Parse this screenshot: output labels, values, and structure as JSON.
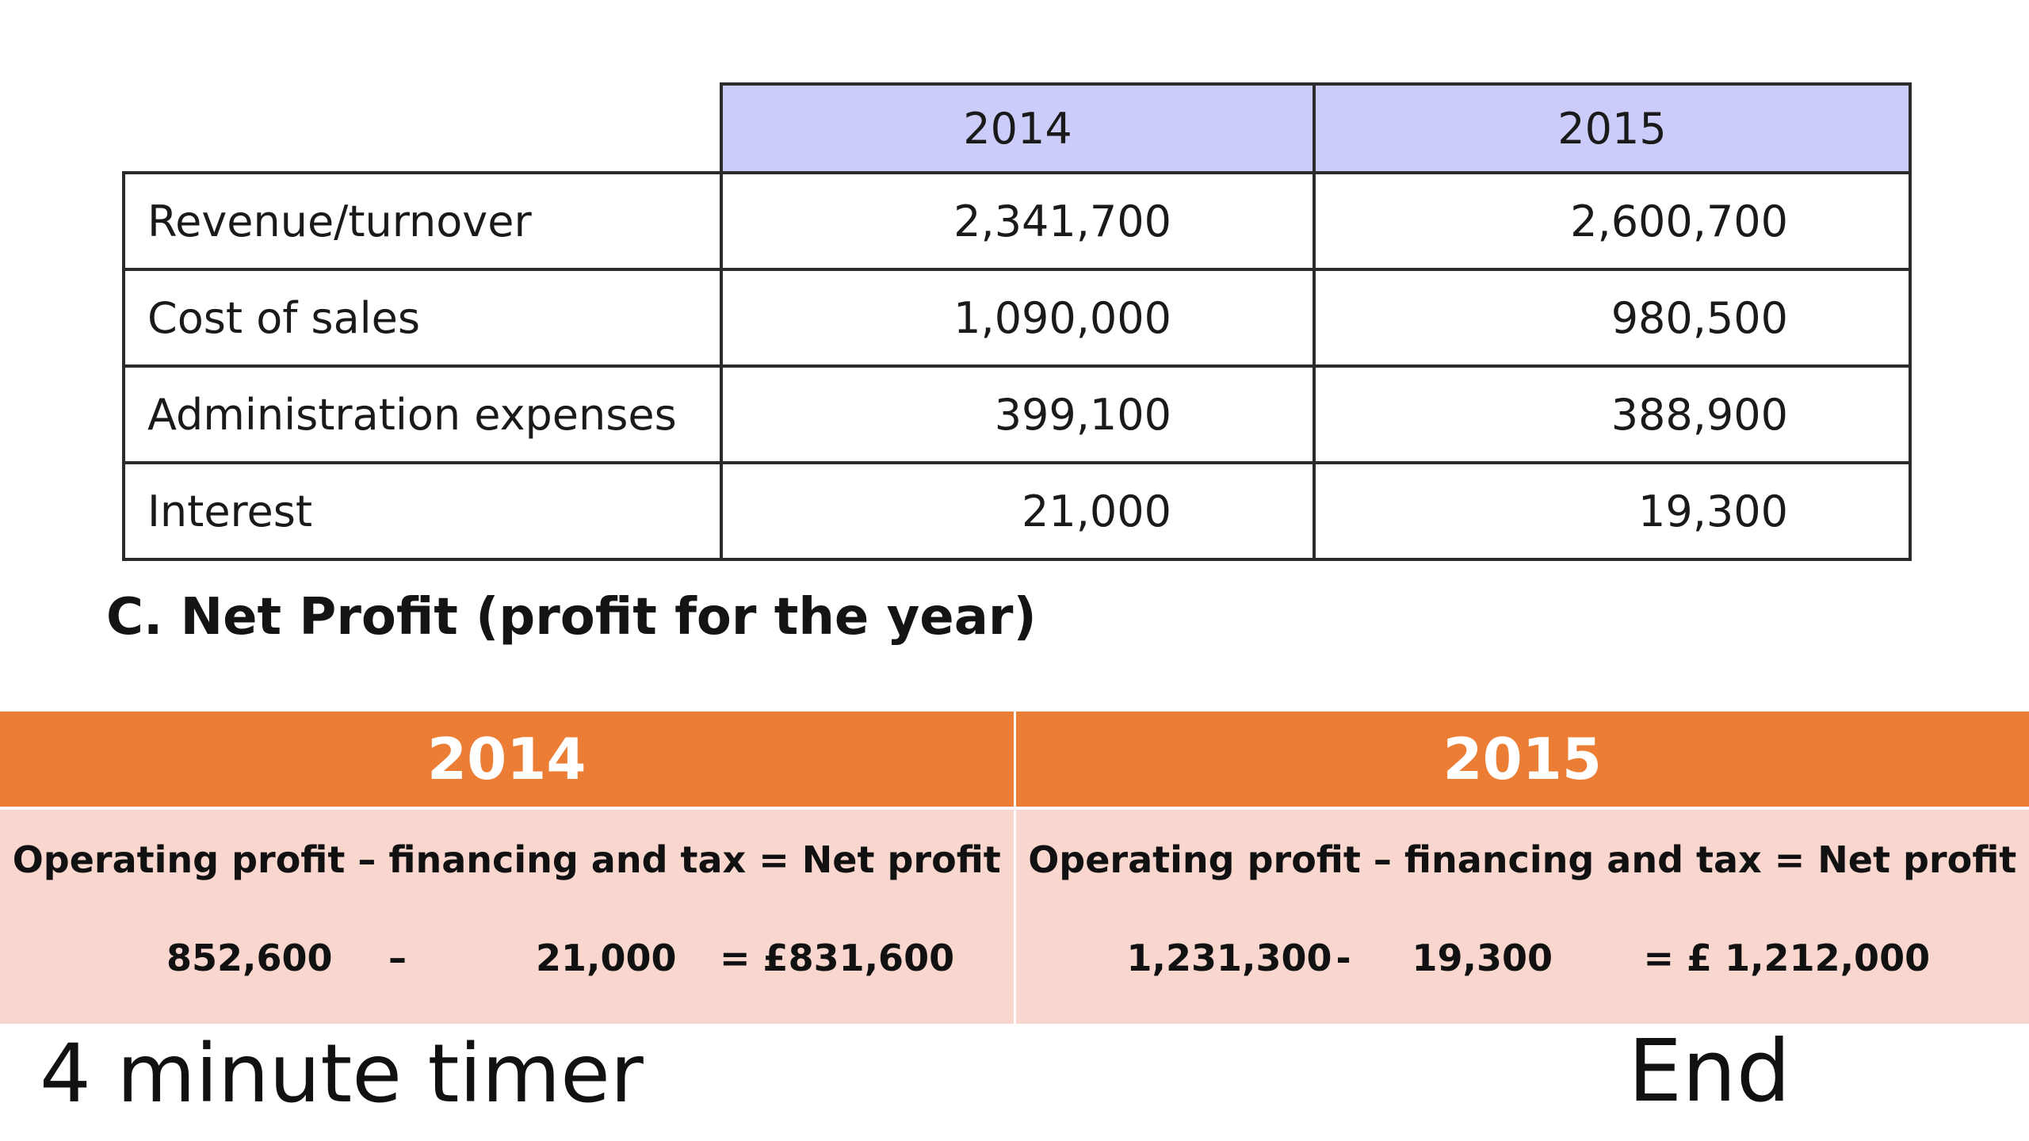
{
  "financials_table": {
    "columns": [
      "2014",
      "2015"
    ],
    "rows": [
      {
        "label": "Revenue/turnover",
        "y2014": "2,341,700",
        "y2015": "2,600,700"
      },
      {
        "label": "Cost of sales",
        "y2014": "1,090,000",
        "y2015": "980,500"
      },
      {
        "label": "Administration expenses",
        "y2014": "399,100",
        "y2015": "388,900"
      },
      {
        "label": "Interest",
        "y2014": "21,000",
        "y2015": "19,300"
      }
    ]
  },
  "section_heading": "C. Net Profit (profit for the year)",
  "net_profit": {
    "years": [
      {
        "year": "2014",
        "formula": "Operating profit – financing and tax = Net profit",
        "operating_profit": "852,600",
        "minus_sign": "–",
        "financing": "21,000",
        "result": "= £831,600"
      },
      {
        "year": "2015",
        "formula": "Operating profit – financing and tax = Net profit",
        "operating_profit": "1,231,300",
        "minus_sign": "-",
        "financing": "19,300",
        "result": "=  £ 1,212,000"
      }
    ]
  },
  "footer": {
    "timer_label": "4 minute timer",
    "end_label": "End"
  },
  "colors": {
    "table_header": "#ccccfa",
    "orange_header": "#ec7d34",
    "pink_body": "#f9d7cf"
  }
}
